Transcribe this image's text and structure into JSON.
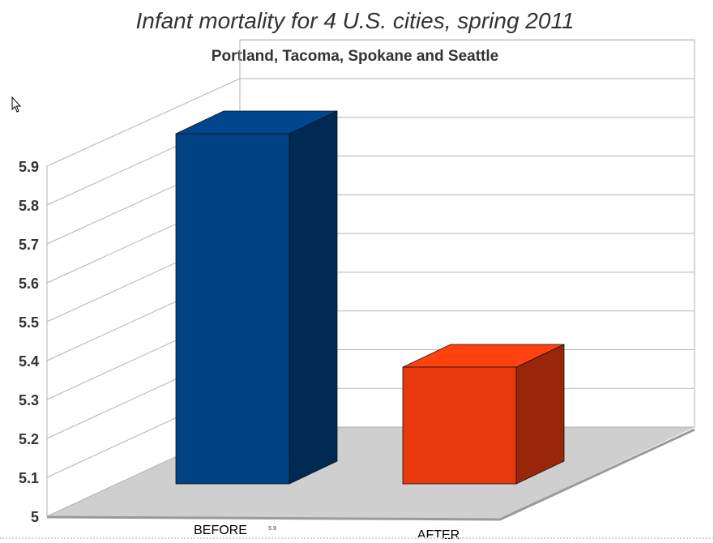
{
  "chart_data": {
    "type": "bar",
    "title": "Infant mortality for 4 U.S. cities, spring 2011",
    "subtitle": "Portland, Tacoma, Spokane and Seattle",
    "categories": [
      "BEFORE",
      "AFTER"
    ],
    "values": [
      5.9,
      5.3
    ],
    "ylim": [
      5,
      5.9
    ],
    "yticks": [
      "5",
      "5.1",
      "5.2",
      "5.3",
      "5.4",
      "5.5",
      "5.6",
      "5.7",
      "5.8",
      "5.9"
    ],
    "grid": true,
    "three_d": true,
    "data_label": "5.9",
    "colors": {
      "before_front": "#004385",
      "before_top": "#00468f",
      "before_side": "#002a52",
      "after_front": "#e8390e",
      "after_top": "#ff420e",
      "after_side": "#9a260a",
      "floor": "#cfcfcf",
      "grid": "#b3b3b3"
    }
  }
}
